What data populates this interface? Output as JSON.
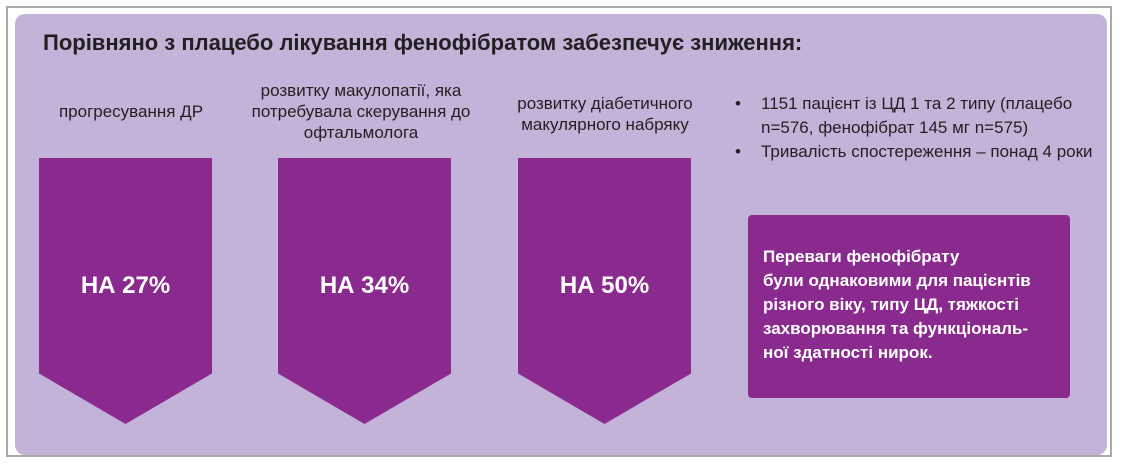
{
  "title": "Порівняно з плацебо лікування фенофібратом забезпечує зниження:",
  "outcomes": [
    {
      "label": "прогресування ДР",
      "value": "НА 27%"
    },
    {
      "label": "розвитку макулопатії, яка потребувала скерування до офтальмолога",
      "value": "НА 34%"
    },
    {
      "label": "розвитку діабетичного макулярного набряку",
      "value": "НА 50%"
    }
  ],
  "bullets": [
    "1151 пацієнт із ЦД 1 та 2 типу (плацебо n=576, фенофібрат 145 мг n=575)",
    "Тривалість спостереження – понад 4 роки"
  ],
  "bullet_symbol": "•",
  "callout": "Переваги фенофібрату\nбули однаковими для пацієнтів\nрізного віку, типу ЦД, тяжкості\nзахворювання та функціональ-\nної здатності нирок.",
  "colors": {
    "background": "#c3b3d8",
    "accent": "#8b2a8e",
    "text": "#231f20",
    "accent_text": "#ffffff"
  }
}
